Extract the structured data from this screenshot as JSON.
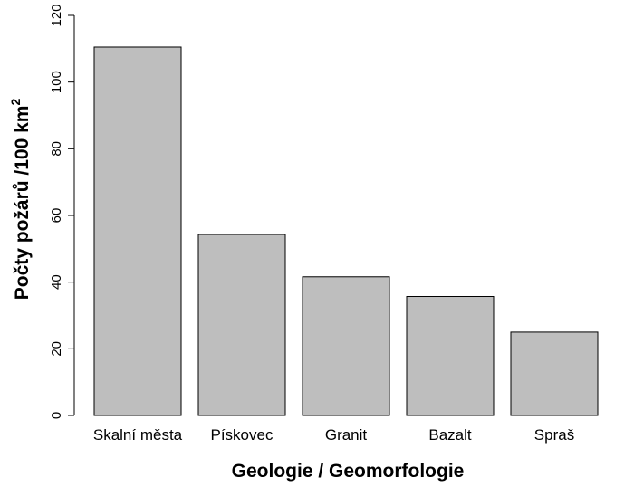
{
  "chart_data": {
    "type": "bar",
    "categories": [
      "Skalní města",
      "Pískovec",
      "Granit",
      "Bazalt",
      "Spraš"
    ],
    "values": [
      110.5,
      54.3,
      41.6,
      35.7,
      25.0
    ],
    "xlabel": "Geologie / Geomorfologie",
    "ylabel_main": "Počty požárů /100 km",
    "ylabel_sup": "2",
    "ylim": [
      0,
      120
    ],
    "yticks": [
      0,
      20,
      40,
      60,
      80,
      100,
      120
    ],
    "grid": false,
    "bar_color": "#bebebe",
    "bar_border_color": "#000000"
  }
}
